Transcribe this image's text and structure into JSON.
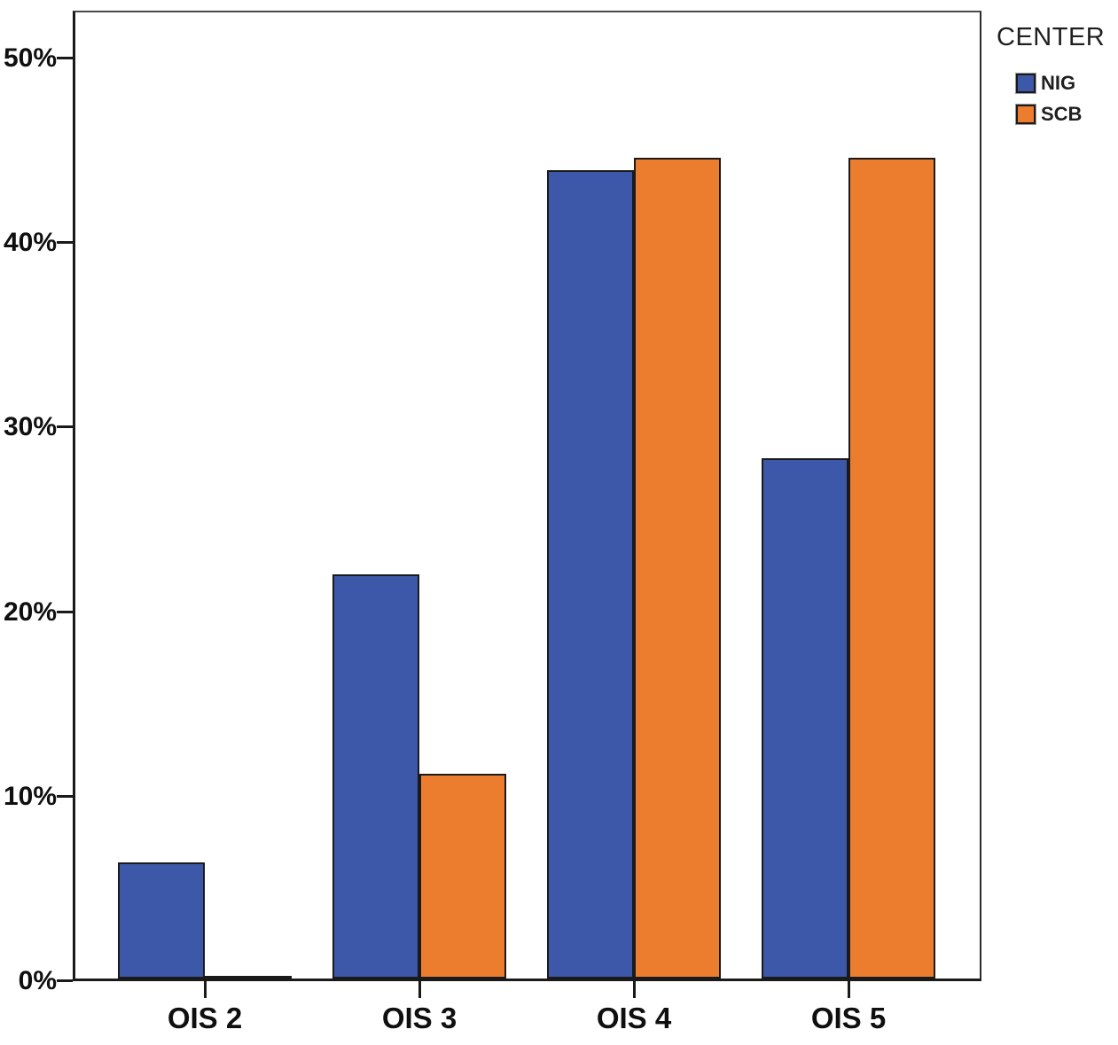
{
  "chart_data": {
    "type": "bar",
    "title": "",
    "xlabel": "",
    "ylabel": "",
    "categories": [
      "OIS 2",
      "OIS 3",
      "OIS 4",
      "OIS 5"
    ],
    "series": [
      {
        "name": "NIG",
        "color": "#3D58A8",
        "values": [
          6.3,
          21.9,
          43.8,
          28.2
        ]
      },
      {
        "name": "SCB",
        "color": "#EC7D2E",
        "values": [
          0.0,
          11.1,
          44.5,
          44.5
        ]
      }
    ],
    "y_tick_values": [
      0,
      10,
      20,
      30,
      40,
      50
    ],
    "y_tick_labels": [
      "0%",
      "10%",
      "20%",
      "30%",
      "40%",
      "50%"
    ],
    "ylim": [
      0,
      52.6
    ],
    "grid": false,
    "legend_title": "CENTER",
    "legend_position": "outside-top-right",
    "bar_outline_color": "#1a1a1a",
    "background_color": "#ffffff"
  }
}
